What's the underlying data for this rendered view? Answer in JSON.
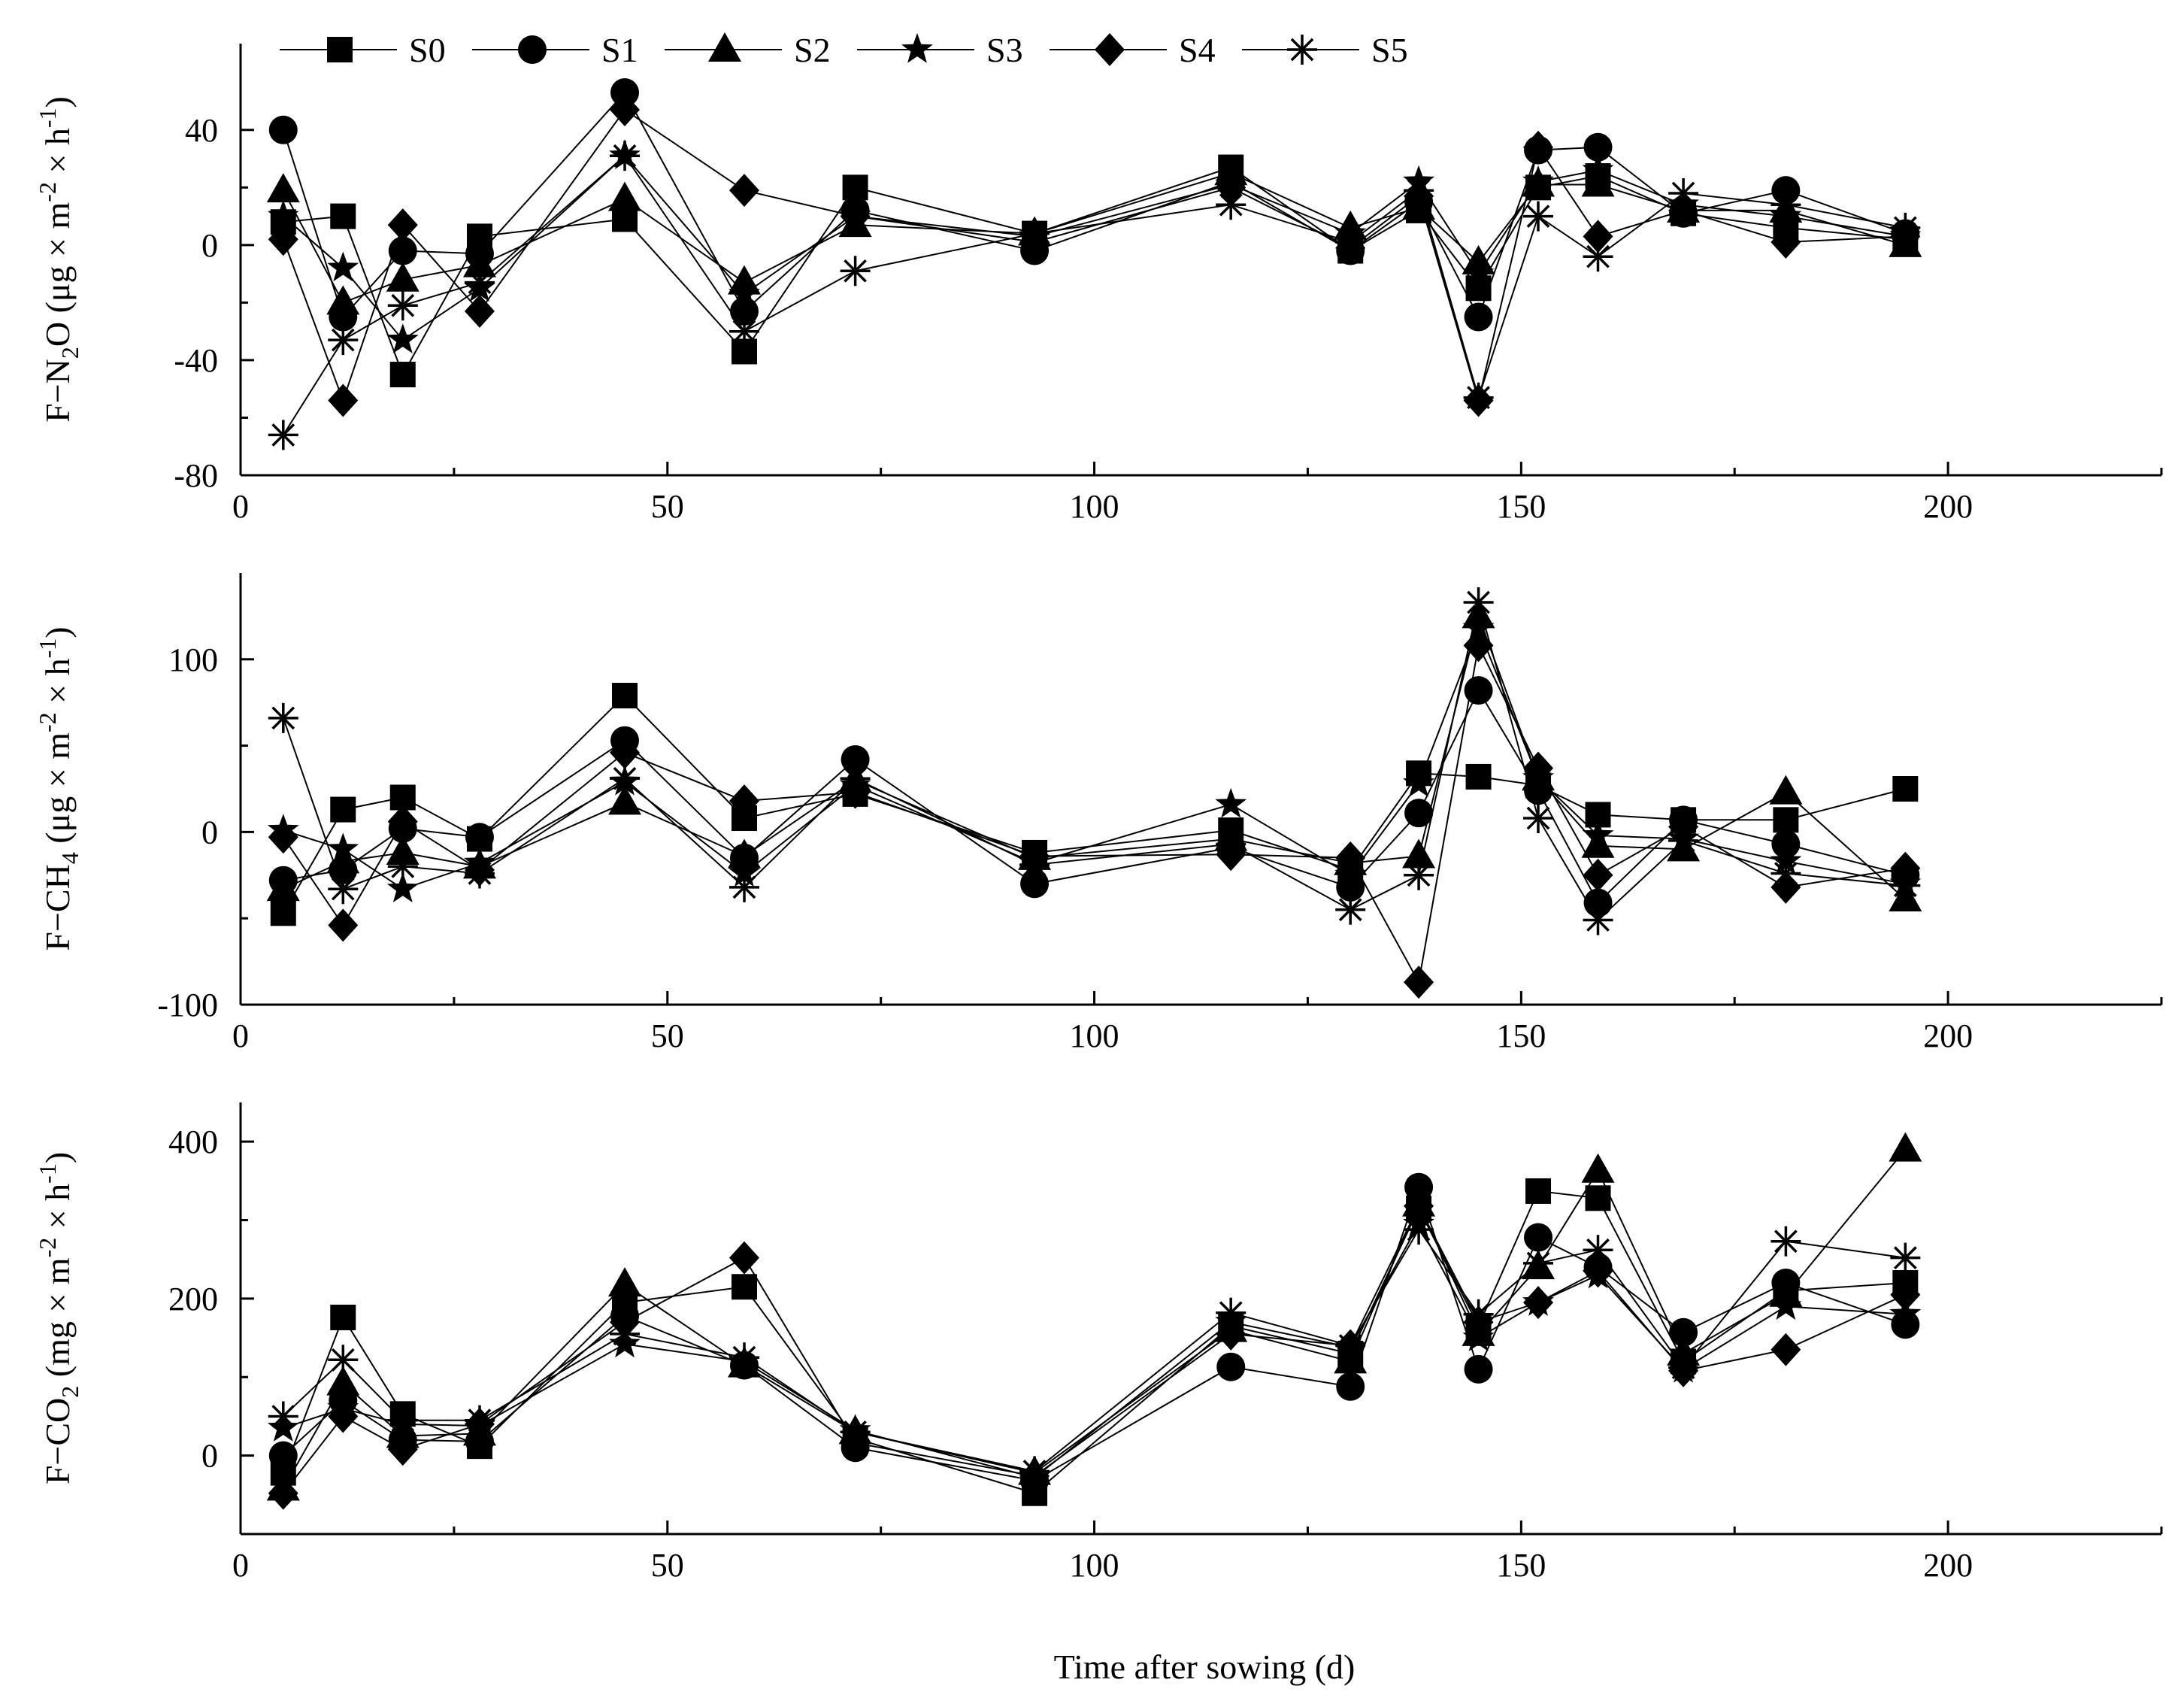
{
  "chart_data": [
    {
      "type": "line",
      "id": "n2o",
      "ylabel": "F−N₂O (μg × m⁻² × h⁻¹)",
      "ylabel_parts": {
        "pre": "F−N",
        "sub": "2",
        "unit_pre": "O (μg × m",
        "sup1": "-2",
        "unit_mid": " × h",
        "sup2": "-1",
        "unit_post": ")"
      },
      "xlim": [
        0,
        225
      ],
      "ylim": [
        -80,
        70
      ],
      "xticks": [
        0,
        50,
        100,
        150,
        200
      ],
      "yticks": [
        -80,
        -40,
        0,
        40
      ],
      "x": [
        5,
        12,
        19,
        28,
        45,
        59,
        72,
        93,
        116,
        130,
        138,
        145,
        152,
        159,
        169,
        181,
        195
      ],
      "series": [
        {
          "name": "S0",
          "values": [
            8,
            10,
            -45,
            3,
            9,
            -37,
            20,
            4,
            27,
            -2,
            12,
            -15,
            20,
            24,
            11,
            6,
            2
          ]
        },
        {
          "name": "S1",
          "values": [
            40,
            -25,
            -2,
            -3,
            53,
            -23,
            12,
            -2,
            22,
            -2,
            15,
            -25,
            33,
            34,
            11,
            19,
            4
          ]
        },
        {
          "name": "S2",
          "values": [
            19,
            -20,
            -12,
            -7,
            16,
            -13,
            7,
            4,
            25,
            6,
            13,
            -6,
            21,
            21,
            12,
            12,
            0
          ]
        },
        {
          "name": "S3",
          "values": [
            10,
            -8,
            -33,
            -15,
            31,
            -17,
            10,
            3,
            21,
            4,
            22,
            -10,
            22,
            26,
            14,
            10,
            3
          ]
        },
        {
          "name": "S4",
          "values": [
            2,
            -54,
            7,
            -23,
            47,
            19,
            10,
            1,
            20,
            -1,
            17,
            -54,
            34,
            3,
            12,
            1,
            3
          ]
        },
        {
          "name": "S5",
          "values": [
            -66,
            -33,
            -21,
            -13,
            31,
            -30,
            -9,
            4,
            14,
            1,
            19,
            -53,
            10,
            -4,
            18,
            14,
            6
          ]
        }
      ]
    },
    {
      "type": "line",
      "id": "ch4",
      "ylabel": "F−CH₄ (μg × m⁻² × h⁻¹)",
      "ylabel_parts": {
        "pre": "F−CH",
        "sub": "4",
        "unit_pre": " (μg × m",
        "sup1": "-2",
        "unit_mid": " × h",
        "sup2": "-1",
        "unit_post": ")"
      },
      "xlim": [
        0,
        225
      ],
      "ylim": [
        -100,
        150
      ],
      "xticks": [
        0,
        50,
        100,
        150,
        200
      ],
      "yticks": [
        -100,
        0,
        100
      ],
      "x": [
        5,
        12,
        19,
        28,
        45,
        59,
        72,
        93,
        116,
        130,
        138,
        145,
        152,
        159,
        169,
        181,
        195
      ],
      "series": [
        {
          "name": "S0",
          "values": [
            -47,
            13,
            20,
            -4,
            79,
            8,
            22,
            -12,
            1,
            -22,
            34,
            32,
            27,
            10,
            7,
            7,
            25
          ]
        },
        {
          "name": "S1",
          "values": [
            -28,
            -22,
            2,
            -3,
            53,
            -15,
            42,
            -30,
            -9,
            -32,
            11,
            82,
            24,
            -41,
            7,
            -7,
            -25
          ]
        },
        {
          "name": "S2",
          "values": [
            -33,
            -17,
            -12,
            -20,
            17,
            -14,
            30,
            -15,
            -4,
            -18,
            -14,
            125,
            31,
            -8,
            -10,
            23,
            -39
          ]
        },
        {
          "name": "S3",
          "values": [
            1,
            -10,
            -33,
            -18,
            29,
            -24,
            27,
            -18,
            16,
            -25,
            28,
            118,
            31,
            -2,
            -4,
            -17,
            -30
          ]
        },
        {
          "name": "S4",
          "values": [
            -3,
            -54,
            6,
            -22,
            46,
            18,
            23,
            -14,
            -13,
            -15,
            -87,
            108,
            37,
            -25,
            3,
            -32,
            -21
          ]
        },
        {
          "name": "S5",
          "values": [
            66,
            -33,
            -20,
            -24,
            31,
            -32,
            31,
            -19,
            -7,
            -45,
            -25,
            133,
            8,
            -51,
            -5,
            -24,
            -31
          ]
        }
      ]
    },
    {
      "type": "line",
      "id": "co2",
      "ylabel": "F−CO₂ (mg × m⁻² × h⁻¹)",
      "ylabel_parts": {
        "pre": "F−CO",
        "sub": "2",
        "unit_pre": " (mg × m",
        "sup1": "-2",
        "unit_mid": " × h",
        "sup2": "-1",
        "unit_post": ")"
      },
      "xlim": [
        0,
        225
      ],
      "ylim": [
        -100,
        450
      ],
      "xticks": [
        0,
        50,
        100,
        150,
        200
      ],
      "yticks": [
        0,
        200,
        400
      ],
      "x": [
        5,
        12,
        19,
        28,
        45,
        59,
        72,
        93,
        116,
        130,
        138,
        145,
        152,
        159,
        169,
        181,
        195
      ],
      "series": [
        {
          "name": "S0",
          "values": [
            -22,
            176,
            53,
            12,
            195,
            215,
            22,
            -48,
            165,
            130,
            315,
            165,
            337,
            328,
            120,
            210,
            220
          ]
        },
        {
          "name": "S1",
          "values": [
            0,
            70,
            20,
            18,
            178,
            115,
            10,
            -32,
            113,
            88,
            342,
            110,
            278,
            240,
            157,
            220,
            167
          ]
        },
        {
          "name": "S2",
          "values": [
            -42,
            92,
            25,
            28,
            218,
            115,
            30,
            -22,
            160,
            120,
            320,
            155,
            240,
            363,
            130,
            205,
            390
          ]
        },
        {
          "name": "S3",
          "values": [
            35,
            60,
            40,
            38,
            142,
            120,
            32,
            -28,
            170,
            138,
            295,
            150,
            195,
            230,
            110,
            190,
            180
          ]
        },
        {
          "name": "S4",
          "values": [
            -48,
            50,
            8,
            40,
            170,
            252,
            16,
            -26,
            155,
            140,
            318,
            170,
            195,
            235,
            108,
            135,
            205
          ]
        },
        {
          "name": "S5",
          "values": [
            50,
            122,
            45,
            45,
            155,
            125,
            30,
            -20,
            182,
            140,
            288,
            180,
            245,
            262,
            112,
            273,
            252
          ]
        }
      ]
    }
  ],
  "legend": {
    "entries": [
      "S0",
      "S1",
      "S2",
      "S3",
      "S4",
      "S5"
    ],
    "markers": [
      "square",
      "circle",
      "triangle",
      "star",
      "diamond",
      "asterisk"
    ],
    "placement": "top-left"
  },
  "xlabel": "Time after sowing (d)",
  "colors": {
    "line": "#000000",
    "marker": "#000000",
    "background": "#ffffff"
  }
}
